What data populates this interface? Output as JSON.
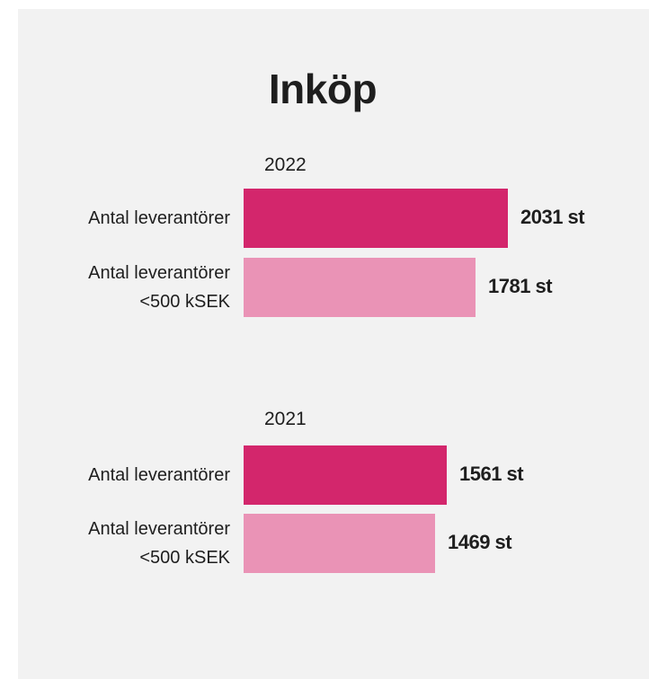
{
  "chart_data": {
    "type": "bar",
    "orientation": "horizontal",
    "title": "Inköp",
    "groups": [
      {
        "year": "2022",
        "bars": [
          {
            "label": [
              "Antal leverantörer"
            ],
            "value": 2031,
            "value_label": "2031 st",
            "color": "#d3266c"
          },
          {
            "label": [
              "Antal leverantörer",
              "<500 kSEK"
            ],
            "value": 1781,
            "value_label": "1781 st",
            "color": "#ea93b6"
          }
        ]
      },
      {
        "year": "2021",
        "bars": [
          {
            "label": [
              "Antal leverantörer"
            ],
            "value": 1561,
            "value_label": "1561 st",
            "color": "#d3266c"
          },
          {
            "label": [
              "Antal leverantörer",
              "<500 kSEK"
            ],
            "value": 1469,
            "value_label": "1469 st",
            "color": "#ea93b6"
          }
        ]
      }
    ],
    "unit": "st"
  }
}
